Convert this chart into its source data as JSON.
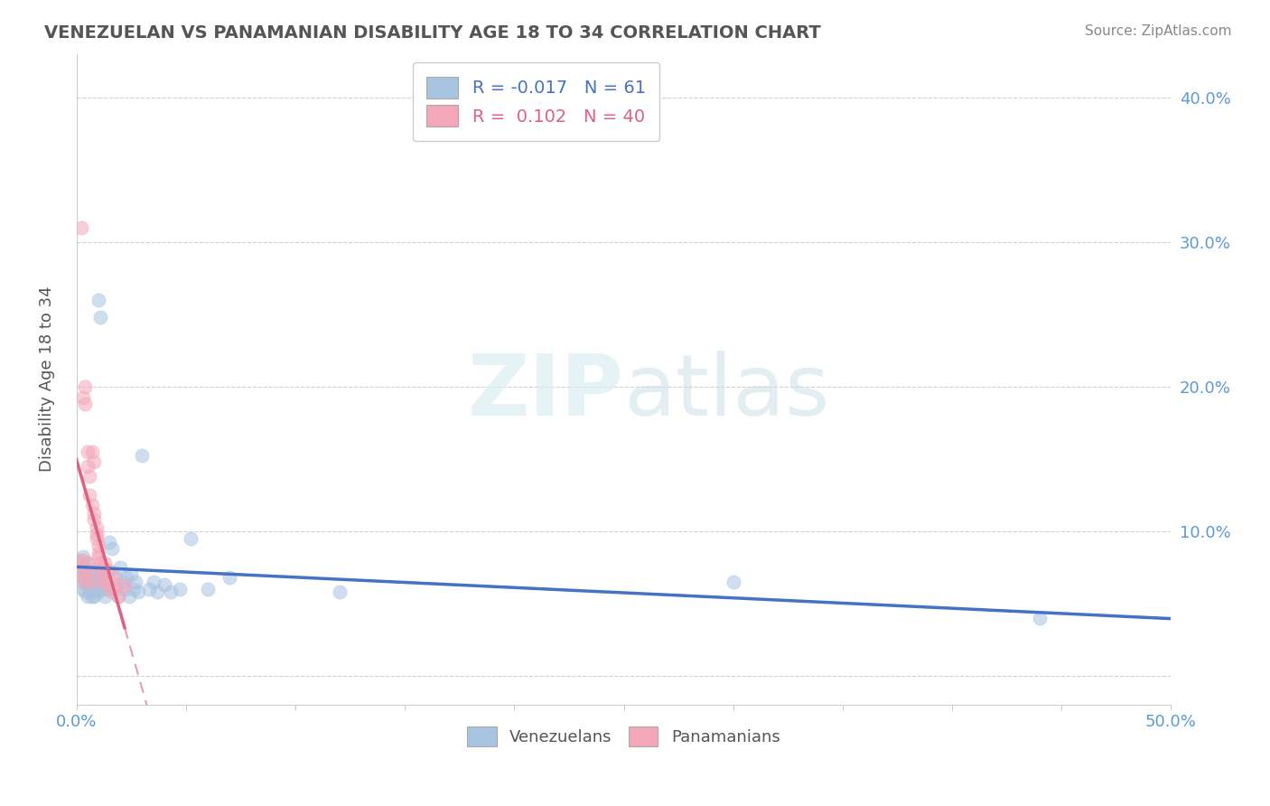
{
  "title": "VENEZUELAN VS PANAMANIAN DISABILITY AGE 18 TO 34 CORRELATION CHART",
  "source": "Source: ZipAtlas.com",
  "xlabel": "",
  "ylabel": "Disability Age 18 to 34",
  "xlim": [
    0.0,
    0.5
  ],
  "ylim": [
    -0.02,
    0.43
  ],
  "xticks": [
    0.0,
    0.05,
    0.1,
    0.15,
    0.2,
    0.25,
    0.3,
    0.35,
    0.4,
    0.45,
    0.5
  ],
  "yticks": [
    0.0,
    0.1,
    0.2,
    0.3,
    0.4
  ],
  "venezuelan_color": "#a8c4e0",
  "panamanian_color": "#f4a7b9",
  "venezuelan_line_color": "#4472c4",
  "panamanian_line_color": "#e06080",
  "dashed_line_color": "#e0a0b0",
  "R_venezuelan": -0.017,
  "N_venezuelan": 61,
  "R_panamanian": 0.102,
  "N_panamanian": 40,
  "venezuelan_points": [
    [
      0.001,
      0.08
    ],
    [
      0.002,
      0.072
    ],
    [
      0.002,
      0.065
    ],
    [
      0.003,
      0.082
    ],
    [
      0.003,
      0.068
    ],
    [
      0.003,
      0.06
    ],
    [
      0.004,
      0.075
    ],
    [
      0.004,
      0.058
    ],
    [
      0.004,
      0.07
    ],
    [
      0.005,
      0.055
    ],
    [
      0.005,
      0.062
    ],
    [
      0.005,
      0.078
    ],
    [
      0.006,
      0.058
    ],
    [
      0.006,
      0.072
    ],
    [
      0.006,
      0.06
    ],
    [
      0.007,
      0.055
    ],
    [
      0.007,
      0.068
    ],
    [
      0.007,
      0.065
    ],
    [
      0.008,
      0.06
    ],
    [
      0.008,
      0.07
    ],
    [
      0.008,
      0.055
    ],
    [
      0.009,
      0.062
    ],
    [
      0.009,
      0.068
    ],
    [
      0.01,
      0.058
    ],
    [
      0.01,
      0.072
    ],
    [
      0.01,
      0.26
    ],
    [
      0.011,
      0.248
    ],
    [
      0.011,
      0.06
    ],
    [
      0.012,
      0.075
    ],
    [
      0.012,
      0.065
    ],
    [
      0.013,
      0.055
    ],
    [
      0.013,
      0.068
    ],
    [
      0.014,
      0.06
    ],
    [
      0.014,
      0.072
    ],
    [
      0.015,
      0.092
    ],
    [
      0.016,
      0.088
    ],
    [
      0.017,
      0.06
    ],
    [
      0.018,
      0.068
    ],
    [
      0.019,
      0.055
    ],
    [
      0.02,
      0.075
    ],
    [
      0.021,
      0.065
    ],
    [
      0.022,
      0.06
    ],
    [
      0.023,
      0.068
    ],
    [
      0.024,
      0.055
    ],
    [
      0.025,
      0.07
    ],
    [
      0.026,
      0.06
    ],
    [
      0.027,
      0.065
    ],
    [
      0.028,
      0.058
    ],
    [
      0.03,
      0.152
    ],
    [
      0.033,
      0.06
    ],
    [
      0.035,
      0.065
    ],
    [
      0.037,
      0.058
    ],
    [
      0.04,
      0.063
    ],
    [
      0.043,
      0.058
    ],
    [
      0.047,
      0.06
    ],
    [
      0.052,
      0.095
    ],
    [
      0.06,
      0.06
    ],
    [
      0.07,
      0.068
    ],
    [
      0.12,
      0.058
    ],
    [
      0.3,
      0.065
    ],
    [
      0.44,
      0.04
    ]
  ],
  "panamanian_points": [
    [
      0.001,
      0.078
    ],
    [
      0.002,
      0.068
    ],
    [
      0.002,
      0.31
    ],
    [
      0.003,
      0.08
    ],
    [
      0.003,
      0.072
    ],
    [
      0.003,
      0.192
    ],
    [
      0.004,
      0.065
    ],
    [
      0.004,
      0.2
    ],
    [
      0.004,
      0.188
    ],
    [
      0.005,
      0.155
    ],
    [
      0.005,
      0.078
    ],
    [
      0.005,
      0.145
    ],
    [
      0.006,
      0.072
    ],
    [
      0.006,
      0.138
    ],
    [
      0.006,
      0.125
    ],
    [
      0.007,
      0.118
    ],
    [
      0.007,
      0.065
    ],
    [
      0.007,
      0.155
    ],
    [
      0.008,
      0.112
    ],
    [
      0.008,
      0.148
    ],
    [
      0.008,
      0.108
    ],
    [
      0.009,
      0.102
    ],
    [
      0.009,
      0.098
    ],
    [
      0.009,
      0.095
    ],
    [
      0.01,
      0.09
    ],
    [
      0.01,
      0.085
    ],
    [
      0.01,
      0.082
    ],
    [
      0.011,
      0.078
    ],
    [
      0.011,
      0.075
    ],
    [
      0.012,
      0.072
    ],
    [
      0.012,
      0.065
    ],
    [
      0.013,
      0.078
    ],
    [
      0.013,
      0.068
    ],
    [
      0.014,
      0.062
    ],
    [
      0.015,
      0.072
    ],
    [
      0.016,
      0.058
    ],
    [
      0.017,
      0.068
    ],
    [
      0.018,
      0.062
    ],
    [
      0.019,
      0.055
    ],
    [
      0.022,
      0.062
    ]
  ]
}
